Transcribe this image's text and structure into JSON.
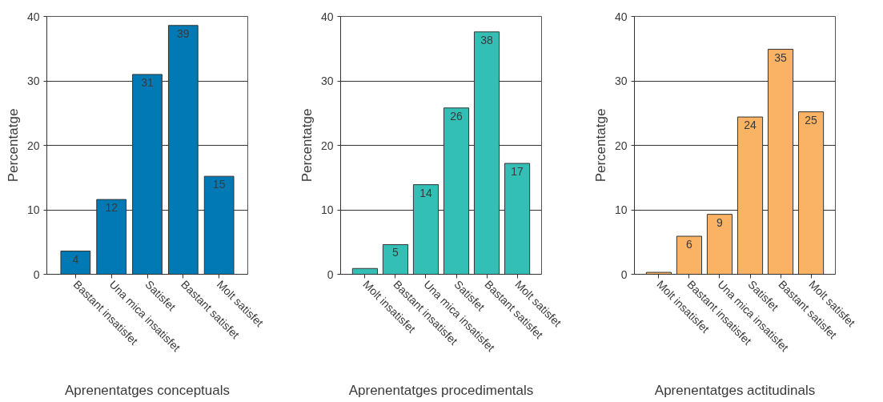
{
  "chart_data": [
    {
      "type": "bar",
      "xlabel": "Aprenentatges conceptuals",
      "ylabel": "Percentatge",
      "categories": [
        "Bastant insatisfet",
        "Una mica insatisfet",
        "Satisfet",
        "Bastant satisfet",
        "Molt satisfet"
      ],
      "values": [
        3.6,
        11.6,
        31.0,
        38.6,
        15.2
      ],
      "value_labels": [
        "4",
        "12",
        "31",
        "39",
        "15"
      ],
      "color": "#0079b4",
      "ylim": [
        0,
        40
      ],
      "yticks": [
        0,
        10,
        20,
        30,
        40
      ],
      "grid": "y"
    },
    {
      "type": "bar",
      "xlabel": "Aprenentatges procedimentals",
      "ylabel": "Percentatge",
      "categories": [
        "Molt insatisfet",
        "Bastant insatisfet",
        "Una mica insatisfet",
        "Satisfet",
        "Bastant satisfet",
        "Molt satisfet"
      ],
      "values": [
        0.9,
        4.6,
        13.9,
        25.8,
        37.6,
        17.2
      ],
      "value_labels": [
        null,
        "5",
        "14",
        "26",
        "38",
        "17"
      ],
      "color": "#33bfb6",
      "ylim": [
        0,
        40
      ],
      "yticks": [
        0,
        10,
        20,
        30,
        40
      ],
      "grid": "y"
    },
    {
      "type": "bar",
      "xlabel": "Aprenentatges actitudinals",
      "ylabel": "Percentatge",
      "categories": [
        "Molt insatisfet",
        "Bastant insatisfet",
        "Una mica insatisfet",
        "Satisfet",
        "Bastant satisfet",
        "Molt satisfet"
      ],
      "values": [
        0.3,
        5.9,
        9.3,
        24.4,
        34.9,
        25.2
      ],
      "value_labels": [
        null,
        "6",
        "9",
        "24",
        "35",
        "25"
      ],
      "color": "#fab264",
      "ylim": [
        0,
        40
      ],
      "yticks": [
        0,
        10,
        20,
        30,
        40
      ],
      "grid": "y"
    }
  ]
}
